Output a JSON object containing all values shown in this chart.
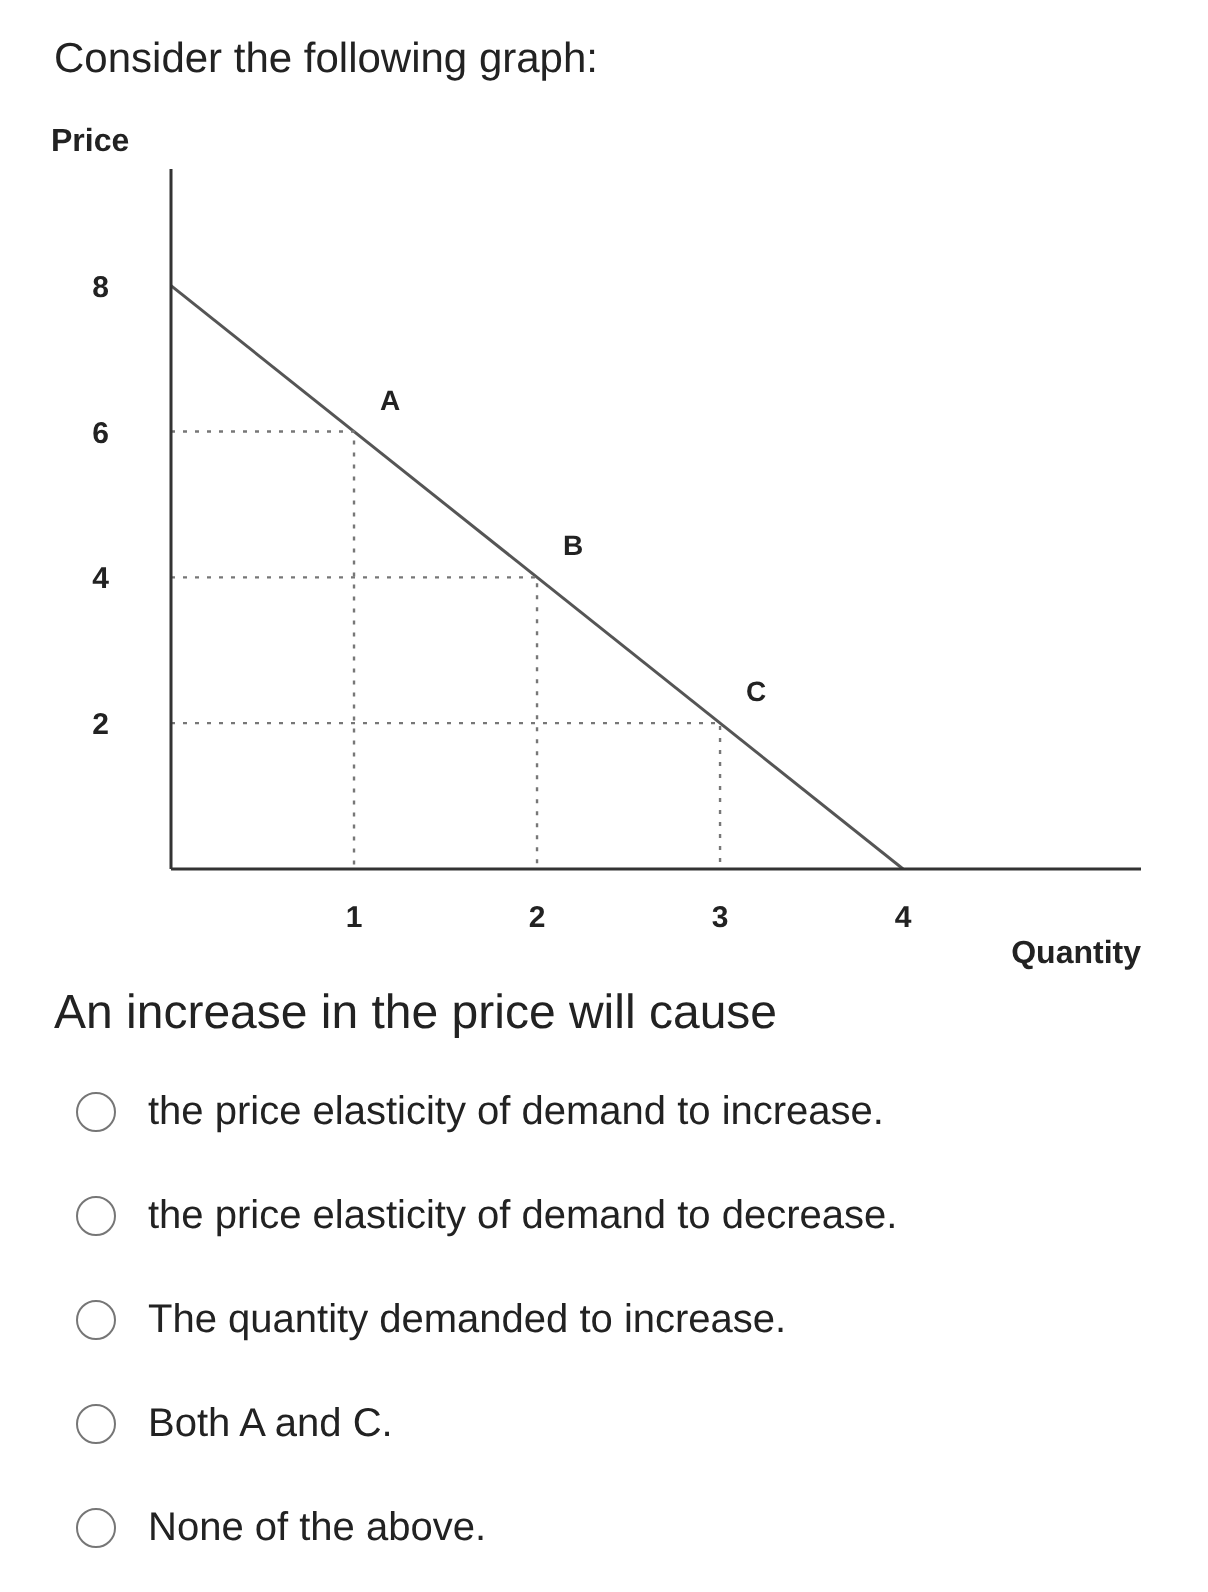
{
  "chart_data": {
    "type": "line",
    "title": "Consider the following graph:",
    "xlabel": "Quantity",
    "ylabel": "Price",
    "xlim": [
      0,
      5.3
    ],
    "ylim": [
      0,
      9.6
    ],
    "xticks": [
      1,
      2,
      3,
      4
    ],
    "yticks": [
      2,
      4,
      6,
      8
    ],
    "grid": false,
    "series": [
      {
        "color": "#555555",
        "line_style": "solid",
        "x": [
          0,
          4
        ],
        "values": [
          8,
          0
        ]
      },
      {
        "color": "#777777",
        "line_style": "dotted",
        "x": [
          0,
          1,
          1
        ],
        "values": [
          6,
          6,
          0
        ]
      },
      {
        "color": "#777777",
        "line_style": "dotted",
        "x": [
          0,
          2,
          2
        ],
        "values": [
          4,
          4,
          0
        ]
      },
      {
        "color": "#777777",
        "line_style": "dotted",
        "x": [
          0,
          3,
          3
        ],
        "values": [
          2,
          2,
          0
        ]
      }
    ],
    "annotations": [
      {
        "text": "A",
        "x": 1,
        "y": 6
      },
      {
        "text": "B",
        "x": 2,
        "y": 4
      },
      {
        "text": "C",
        "x": 3,
        "y": 2
      },
      "An increase in the price will cause",
      "the price elasticity of demand to increase.",
      "the price elasticity of demand to decrease.",
      "The quantity demanded to increase.",
      "Both A and C.",
      "None of the above."
    ]
  }
}
